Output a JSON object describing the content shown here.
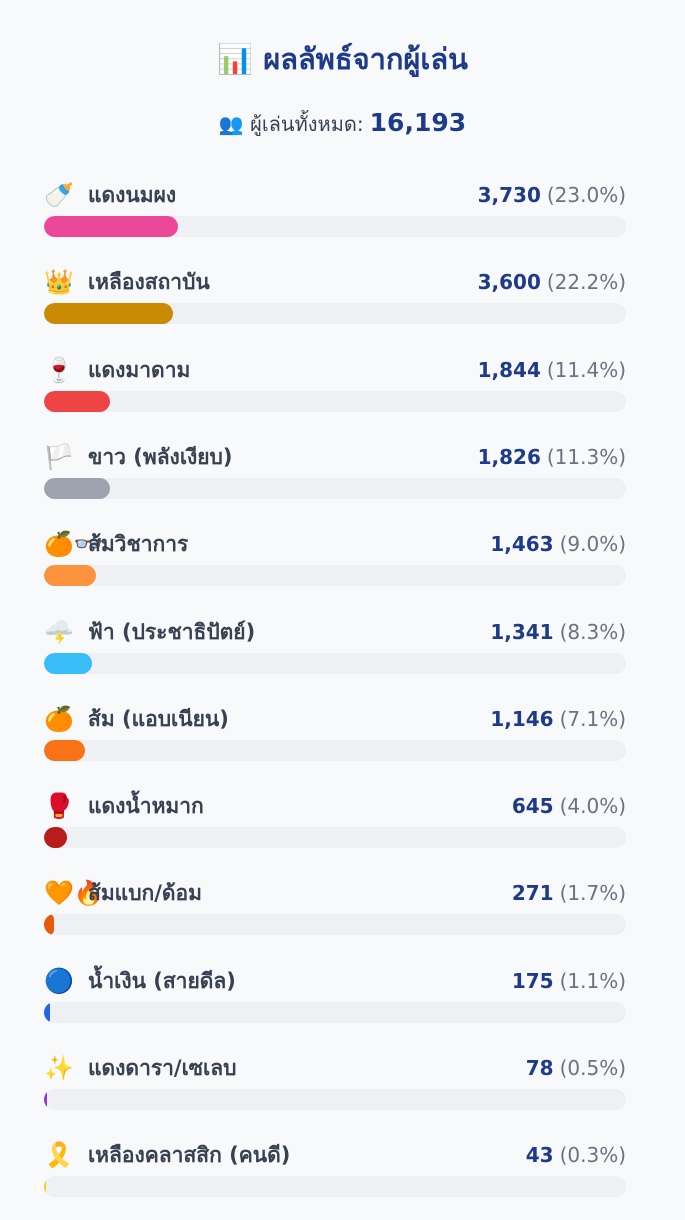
{
  "header": {
    "title": "📊 ผลลัพธ์จากผู้เล่น",
    "total_label": "👥 ผู้เล่นทั้งหมด:",
    "total_value": "16,193"
  },
  "results": [
    {
      "icon": "🍼",
      "name": "แดงนมผง",
      "count": "3,730",
      "share": {
        "value": 23.0,
        "label": "(23.0%)"
      },
      "color": "#ec4899"
    },
    {
      "icon": "👑",
      "name": "เหลืองสถาบัน",
      "count": "3,600",
      "share": {
        "value": 22.2,
        "label": "(22.2%)"
      },
      "color": "#ca8a04"
    },
    {
      "icon": "🍷",
      "name": "แดงมาดาม",
      "count": "1,844",
      "share": {
        "value": 11.4,
        "label": "(11.4%)"
      },
      "color": "#ef4444"
    },
    {
      "icon": "🏳️",
      "name": "ขาว (พลังเงียบ)",
      "count": "1,826",
      "share": {
        "value": 11.3,
        "label": "(11.3%)"
      },
      "color": "#9ca3af"
    },
    {
      "icon": "🍊👓",
      "name": "ส้มวิชาการ",
      "count": "1,463",
      "share": {
        "value": 9.0,
        "label": "(9.0%)"
      },
      "color": "#fb923c"
    },
    {
      "icon": "🌩️",
      "name": "ฟ้า (ประชาธิปัตย์)",
      "count": "1,341",
      "share": {
        "value": 8.3,
        "label": "(8.3%)"
      },
      "color": "#38bdf8"
    },
    {
      "icon": "🍊",
      "name": "ส้ม (แอบเนียน)",
      "count": "1,146",
      "share": {
        "value": 7.1,
        "label": "(7.1%)"
      },
      "color": "#f97316"
    },
    {
      "icon": "🥊",
      "name": "แดงน้ำหมาก",
      "count": "645",
      "share": {
        "value": 4.0,
        "label": "(4.0%)"
      },
      "color": "#b91c1c"
    },
    {
      "icon": "🧡🔥",
      "name": "ส้มแบก/ด้อม",
      "count": "271",
      "share": {
        "value": 1.7,
        "label": "(1.7%)"
      },
      "color": "#ea580c"
    },
    {
      "icon": "🔵",
      "name": "น้ำเงิน (สายดีล)",
      "count": "175",
      "share": {
        "value": 1.1,
        "label": "(1.1%)"
      },
      "color": "#2563eb"
    },
    {
      "icon": "✨",
      "name": "แดงดารา/เซเลบ",
      "count": "78",
      "share": {
        "value": 0.5,
        "label": "(0.5%)"
      },
      "color": "#9333ea"
    },
    {
      "icon": "🎗️",
      "name": "เหลืองคลาสสิก (คนดี)",
      "count": "43",
      "share": {
        "value": 0.3,
        "label": "(0.3%)"
      },
      "color": "#facc15"
    }
  ]
}
